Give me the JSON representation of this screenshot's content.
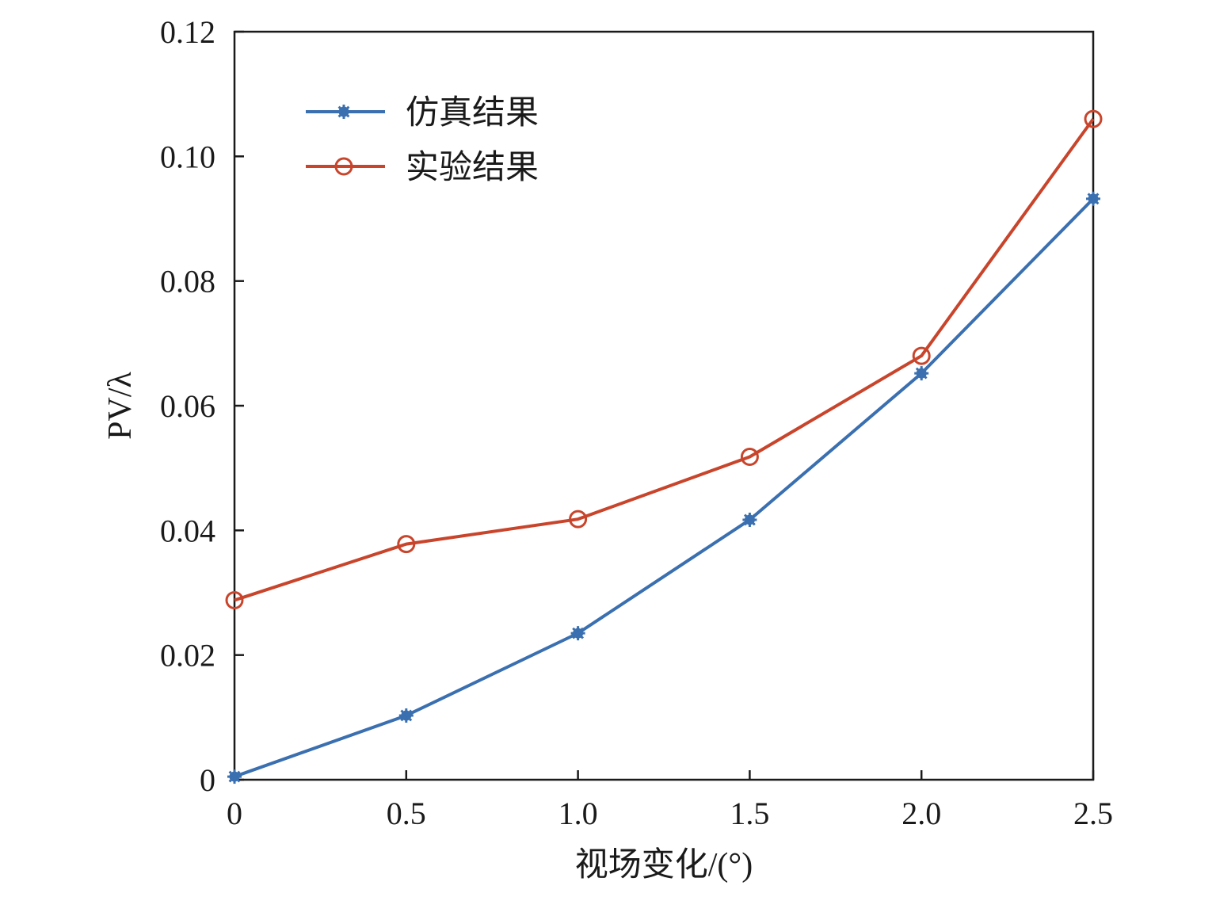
{
  "chart_data": {
    "type": "line",
    "xlabel": "视场变化/(°)",
    "ylabel": "PV/λ",
    "xlim": [
      0,
      2.5
    ],
    "ylim": [
      0,
      0.12
    ],
    "x_ticks": [
      0,
      0.5,
      1.0,
      1.5,
      2.0,
      2.5
    ],
    "x_tick_labels": [
      "0",
      "0.5",
      "1.0",
      "1.5",
      "2.0",
      "2.5"
    ],
    "y_ticks": [
      0,
      0.02,
      0.04,
      0.06,
      0.08,
      0.1,
      0.12
    ],
    "y_tick_labels": [
      "0",
      "0.02",
      "0.04",
      "0.06",
      "0.08",
      "0.10",
      "0.12"
    ],
    "x": [
      0,
      0.5,
      1.0,
      1.5,
      2.0,
      2.5
    ],
    "grid": false,
    "legend_position": "top-left",
    "series": [
      {
        "name": "仿真结果",
        "values": [
          0.0005,
          0.0103,
          0.0235,
          0.0417,
          0.0652,
          0.0932
        ],
        "color": "#3a6fb0",
        "marker": "star"
      },
      {
        "name": "实验结果",
        "values": [
          0.0288,
          0.0378,
          0.0418,
          0.0518,
          0.068,
          0.106
        ],
        "color": "#c8452c",
        "marker": "circle"
      }
    ]
  }
}
